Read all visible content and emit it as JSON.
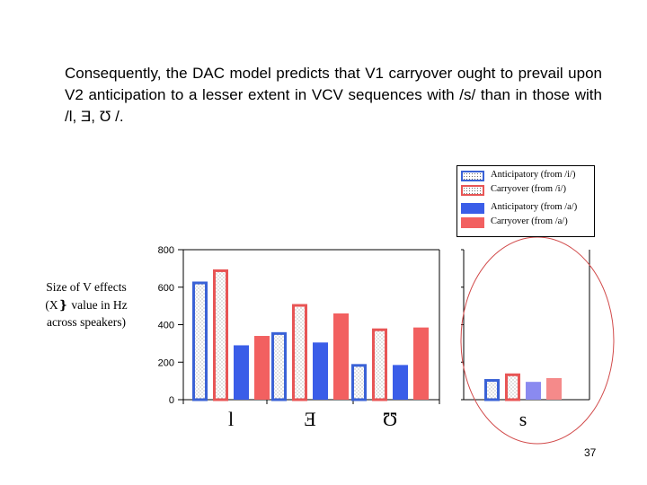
{
  "slide": {
    "text": "Consequently, the DAC model predicts that V1 carryover ought to prevail upon V2 anticipation to a lesser extent in VCV sequences with /s/ than in those with /l, Ǝ, Ʊ /.",
    "page_number": "37"
  },
  "chart_data": {
    "type": "bar",
    "ylabel": "Size of V effects (X❵ value in Hz across speakers)",
    "ylim": [
      0,
      800
    ],
    "yticks": [
      "800",
      "600",
      "400",
      "200",
      "0"
    ],
    "categories": [
      "l",
      "Ǝ",
      "Ʊ",
      "s"
    ],
    "series": [
      {
        "name": "Anticipatory (from /i/)",
        "values": [
          630,
          360,
          190,
          110
        ]
      },
      {
        "name": "Carryover (from /i/)",
        "values": [
          695,
          510,
          380,
          140
        ]
      },
      {
        "name": "Anticipatory (from /a/)",
        "values": [
          290,
          305,
          185,
          95
        ]
      },
      {
        "name": "Carryover (from /a/)",
        "values": [
          340,
          460,
          385,
          115
        ]
      }
    ],
    "legend_position": "top-right",
    "highlight": "s",
    "colors": {
      "anticip_i_border": "#3a62d6",
      "carry_i_border": "#e85555",
      "anticip_a_fill": "#3a5de8",
      "carry_a_fill": "#f26060",
      "highlight_ellipse": "#d14a4a"
    }
  }
}
